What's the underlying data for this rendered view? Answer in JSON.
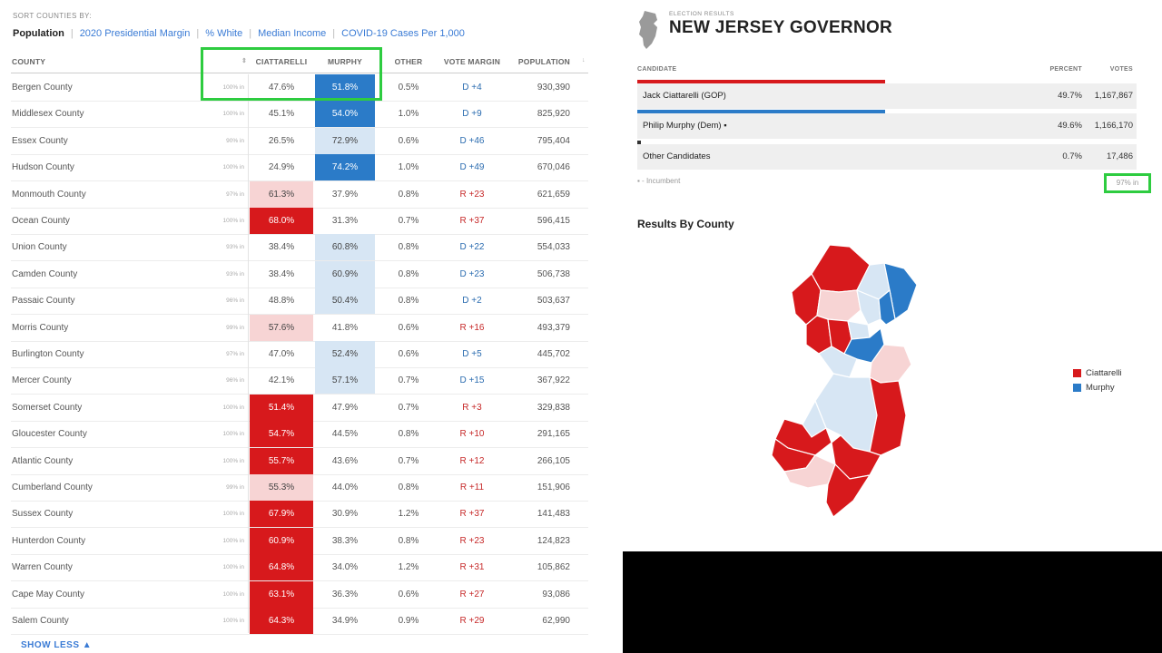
{
  "sort": {
    "label": "SORT COUNTIES BY:",
    "options": [
      "Population",
      "2020 Presidential Margin",
      "% White",
      "Median Income",
      "COVID-19 Cases Per 1,000"
    ],
    "active": "Population"
  },
  "table": {
    "headers": {
      "county": "COUNTY",
      "ciattarelli": "CIATTARELLI",
      "murphy": "MURPHY",
      "other": "OTHER",
      "margin": "VOTE MARGIN",
      "population": "POPULATION"
    },
    "rows": [
      {
        "county": "Bergen County",
        "pct_in": "100% in",
        "ciat": "47.6%",
        "mur": "51.8%",
        "other": "0.5%",
        "margin": "D +4",
        "pop": "930,390",
        "ciat_style": "plain",
        "mur_style": "b-strong",
        "party": "d"
      },
      {
        "county": "Middlesex County",
        "pct_in": "100% in",
        "ciat": "45.1%",
        "mur": "54.0%",
        "other": "1.0%",
        "margin": "D +9",
        "pop": "825,920",
        "ciat_style": "plain",
        "mur_style": "b-strong",
        "party": "d"
      },
      {
        "county": "Essex County",
        "pct_in": "90% in",
        "ciat": "26.5%",
        "mur": "72.9%",
        "other": "0.6%",
        "margin": "D +46",
        "pop": "795,404",
        "ciat_style": "plain",
        "mur_style": "b-light",
        "party": "d"
      },
      {
        "county": "Hudson County",
        "pct_in": "100% in",
        "ciat": "24.9%",
        "mur": "74.2%",
        "other": "1.0%",
        "margin": "D +49",
        "pop": "670,046",
        "ciat_style": "plain",
        "mur_style": "b-strong",
        "party": "d"
      },
      {
        "county": "Monmouth County",
        "pct_in": "97% in",
        "ciat": "61.3%",
        "mur": "37.9%",
        "other": "0.8%",
        "margin": "R +23",
        "pop": "621,659",
        "ciat_style": "r-light",
        "mur_style": "plain",
        "party": "r"
      },
      {
        "county": "Ocean County",
        "pct_in": "100% in",
        "ciat": "68.0%",
        "mur": "31.3%",
        "other": "0.7%",
        "margin": "R +37",
        "pop": "596,415",
        "ciat_style": "r-strong",
        "mur_style": "plain",
        "party": "r"
      },
      {
        "county": "Union County",
        "pct_in": "93% in",
        "ciat": "38.4%",
        "mur": "60.8%",
        "other": "0.8%",
        "margin": "D +22",
        "pop": "554,033",
        "ciat_style": "plain",
        "mur_style": "b-light",
        "party": "d"
      },
      {
        "county": "Camden County",
        "pct_in": "93% in",
        "ciat": "38.4%",
        "mur": "60.9%",
        "other": "0.8%",
        "margin": "D +23",
        "pop": "506,738",
        "ciat_style": "plain",
        "mur_style": "b-light",
        "party": "d"
      },
      {
        "county": "Passaic County",
        "pct_in": "96% in",
        "ciat": "48.8%",
        "mur": "50.4%",
        "other": "0.8%",
        "margin": "D +2",
        "pop": "503,637",
        "ciat_style": "plain",
        "mur_style": "b-light",
        "party": "d"
      },
      {
        "county": "Morris County",
        "pct_in": "99% in",
        "ciat": "57.6%",
        "mur": "41.8%",
        "other": "0.6%",
        "margin": "R +16",
        "pop": "493,379",
        "ciat_style": "r-light",
        "mur_style": "plain",
        "party": "r"
      },
      {
        "county": "Burlington County",
        "pct_in": "97% in",
        "ciat": "47.0%",
        "mur": "52.4%",
        "other": "0.6%",
        "margin": "D +5",
        "pop": "445,702",
        "ciat_style": "plain",
        "mur_style": "b-light",
        "party": "d"
      },
      {
        "county": "Mercer County",
        "pct_in": "96% in",
        "ciat": "42.1%",
        "mur": "57.1%",
        "other": "0.7%",
        "margin": "D +15",
        "pop": "367,922",
        "ciat_style": "plain",
        "mur_style": "b-light",
        "party": "d"
      },
      {
        "county": "Somerset County",
        "pct_in": "100% in",
        "ciat": "51.4%",
        "mur": "47.9%",
        "other": "0.7%",
        "margin": "R +3",
        "pop": "329,838",
        "ciat_style": "r-strong",
        "mur_style": "plain",
        "party": "r"
      },
      {
        "county": "Gloucester County",
        "pct_in": "100% in",
        "ciat": "54.7%",
        "mur": "44.5%",
        "other": "0.8%",
        "margin": "R +10",
        "pop": "291,165",
        "ciat_style": "r-strong",
        "mur_style": "plain",
        "party": "r"
      },
      {
        "county": "Atlantic County",
        "pct_in": "100% in",
        "ciat": "55.7%",
        "mur": "43.6%",
        "other": "0.7%",
        "margin": "R +12",
        "pop": "266,105",
        "ciat_style": "r-strong",
        "mur_style": "plain",
        "party": "r"
      },
      {
        "county": "Cumberland County",
        "pct_in": "99% in",
        "ciat": "55.3%",
        "mur": "44.0%",
        "other": "0.8%",
        "margin": "R +11",
        "pop": "151,906",
        "ciat_style": "r-light",
        "mur_style": "plain",
        "party": "r"
      },
      {
        "county": "Sussex County",
        "pct_in": "100% in",
        "ciat": "67.9%",
        "mur": "30.9%",
        "other": "1.2%",
        "margin": "R +37",
        "pop": "141,483",
        "ciat_style": "r-strong",
        "mur_style": "plain",
        "party": "r"
      },
      {
        "county": "Hunterdon County",
        "pct_in": "100% in",
        "ciat": "60.9%",
        "mur": "38.3%",
        "other": "0.8%",
        "margin": "R +23",
        "pop": "124,823",
        "ciat_style": "r-strong",
        "mur_style": "plain",
        "party": "r"
      },
      {
        "county": "Warren County",
        "pct_in": "100% in",
        "ciat": "64.8%",
        "mur": "34.0%",
        "other": "1.2%",
        "margin": "R +31",
        "pop": "105,862",
        "ciat_style": "r-strong",
        "mur_style": "plain",
        "party": "r"
      },
      {
        "county": "Cape May County",
        "pct_in": "100% in",
        "ciat": "63.1%",
        "mur": "36.3%",
        "other": "0.6%",
        "margin": "R +27",
        "pop": "93,086",
        "ciat_style": "r-strong",
        "mur_style": "plain",
        "party": "r"
      },
      {
        "county": "Salem County",
        "pct_in": "100% in",
        "ciat": "64.3%",
        "mur": "34.9%",
        "other": "0.9%",
        "margin": "R +29",
        "pop": "62,990",
        "ciat_style": "r-strong",
        "mur_style": "plain",
        "party": "r"
      }
    ],
    "show_less": "SHOW LESS ▲"
  },
  "results": {
    "small_label": "ELECTION RESULTS",
    "title": "NEW JERSEY GOVERNOR",
    "headers": {
      "candidate": "CANDIDATE",
      "percent": "PERCENT",
      "votes": "VOTES"
    },
    "candidates": [
      {
        "name": "Jack Ciattarelli (GOP)",
        "percent": "49.7%",
        "votes": "1,167,867",
        "color": "#d7191c",
        "bar_fraction": 0.497
      },
      {
        "name": "Philip Murphy (Dem) ▪",
        "percent": "49.6%",
        "votes": "1,166,170",
        "color": "#2b7bc8",
        "bar_fraction": 0.496
      },
      {
        "name": "Other Candidates",
        "percent": "0.7%",
        "votes": "17,486",
        "color": "#333333",
        "bar_fraction": 0.007
      }
    ],
    "incumbent_note": "▪ - Incumbent",
    "pct_in": "97% in",
    "map_title": "Results By County",
    "legend": [
      {
        "label": "Ciattarelli",
        "color": "#d7191c"
      },
      {
        "label": "Murphy",
        "color": "#2b7bc8"
      }
    ]
  },
  "colors": {
    "highlight": "#2ecc40",
    "red_strong": "#d7191c",
    "red_light": "#f7d4d4",
    "blue_strong": "#2b7bc8",
    "blue_light": "#d7e6f4"
  }
}
